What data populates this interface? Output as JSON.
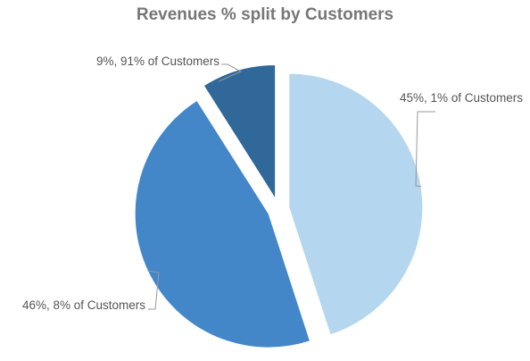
{
  "chart_data": {
    "type": "pie",
    "title": "Revenues % split by Customers",
    "slices": [
      {
        "label": "45%, 1% of Customers",
        "value": 45,
        "color": "#b4d6ee"
      },
      {
        "label": "46%, 8% of Customers",
        "value": 46,
        "color": "#4387c9"
      },
      {
        "label": "9%, 91% of Customers",
        "value": 9,
        "color": "#306899"
      }
    ],
    "exploded": true,
    "legend": "none"
  }
}
